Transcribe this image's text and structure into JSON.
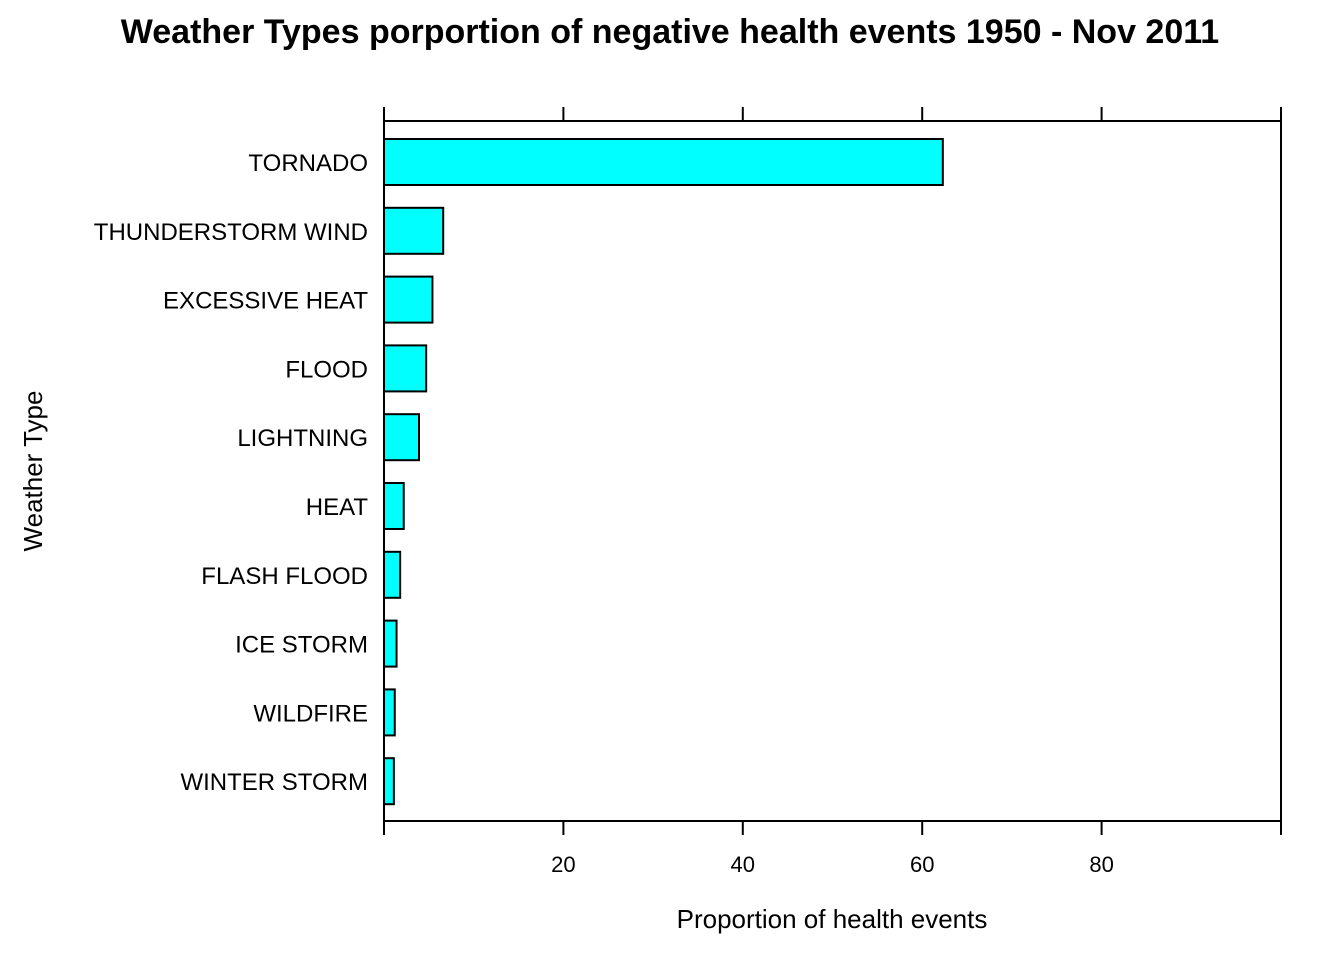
{
  "chart_data": {
    "type": "bar",
    "orientation": "horizontal",
    "title": "Weather Types porportion of negative health events 1950 - Nov 2011",
    "xlabel": "Proportion of health events",
    "ylabel": "Weather Type",
    "xlim": [
      0,
      100
    ],
    "xticks": [
      20,
      40,
      60,
      80
    ],
    "grid": false,
    "bar_color": "#00FFFF",
    "bar_edge_color": "#000000",
    "categories": [
      "TORNADO",
      "THUNDERSTORM WIND",
      "EXCESSIVE HEAT",
      "FLOOD",
      "LIGHTNING",
      "HEAT",
      "FLASH FLOOD",
      "ICE STORM",
      "WILDFIRE",
      "WINTER STORM"
    ],
    "values": [
      62.3,
      6.6,
      5.4,
      4.7,
      3.9,
      2.2,
      1.8,
      1.4,
      1.2,
      1.1
    ]
  }
}
